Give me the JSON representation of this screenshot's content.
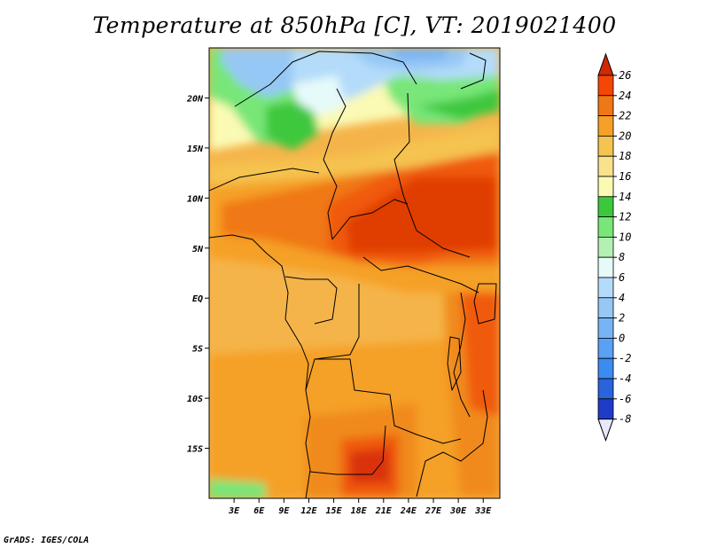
{
  "title": "Temperature at 850hPa [C], VT: 2019021400",
  "credit": "GrADS: IGES/COLA",
  "map": {
    "lon_range": [
      0,
      35
    ],
    "lat_range": [
      -20,
      25
    ],
    "lon_ticks": [
      {
        "value": 3,
        "label": "3E"
      },
      {
        "value": 6,
        "label": "6E"
      },
      {
        "value": 9,
        "label": "9E"
      },
      {
        "value": 12,
        "label": "12E"
      },
      {
        "value": 15,
        "label": "15E"
      },
      {
        "value": 18,
        "label": "18E"
      },
      {
        "value": 21,
        "label": "21E"
      },
      {
        "value": 24,
        "label": "24E"
      },
      {
        "value": 27,
        "label": "27E"
      },
      {
        "value": 30,
        "label": "30E"
      },
      {
        "value": 33,
        "label": "33E"
      }
    ],
    "lat_ticks": [
      {
        "value": 20,
        "label": "20N"
      },
      {
        "value": 15,
        "label": "15N"
      },
      {
        "value": 10,
        "label": "10N"
      },
      {
        "value": 5,
        "label": "5N"
      },
      {
        "value": 0,
        "label": "EQ"
      },
      {
        "value": -5,
        "label": "5S"
      },
      {
        "value": -10,
        "label": "10S"
      },
      {
        "value": -15,
        "label": "15S"
      }
    ]
  },
  "colorbar": {
    "levels": [
      "-8",
      "-6",
      "-4",
      "-2",
      "0",
      "2",
      "4",
      "6",
      "8",
      "10",
      "12",
      "14",
      "16",
      "18",
      "20",
      "22",
      "24",
      "26"
    ],
    "colors": [
      "#0a0a78",
      "#1e3cc8",
      "#2864dc",
      "#3c8cf0",
      "#5aa0f5",
      "#78b4f5",
      "#96c8f5",
      "#b4dcfa",
      "#e6fafa",
      "#b4f0b4",
      "#78e678",
      "#3cc83c",
      "#fafab4",
      "#fae18c",
      "#f5c350",
      "#f5a028",
      "#f07814",
      "#f54605",
      "#d22800"
    ],
    "below_color": "#e8e8fa",
    "above_color": "#d22800"
  }
}
